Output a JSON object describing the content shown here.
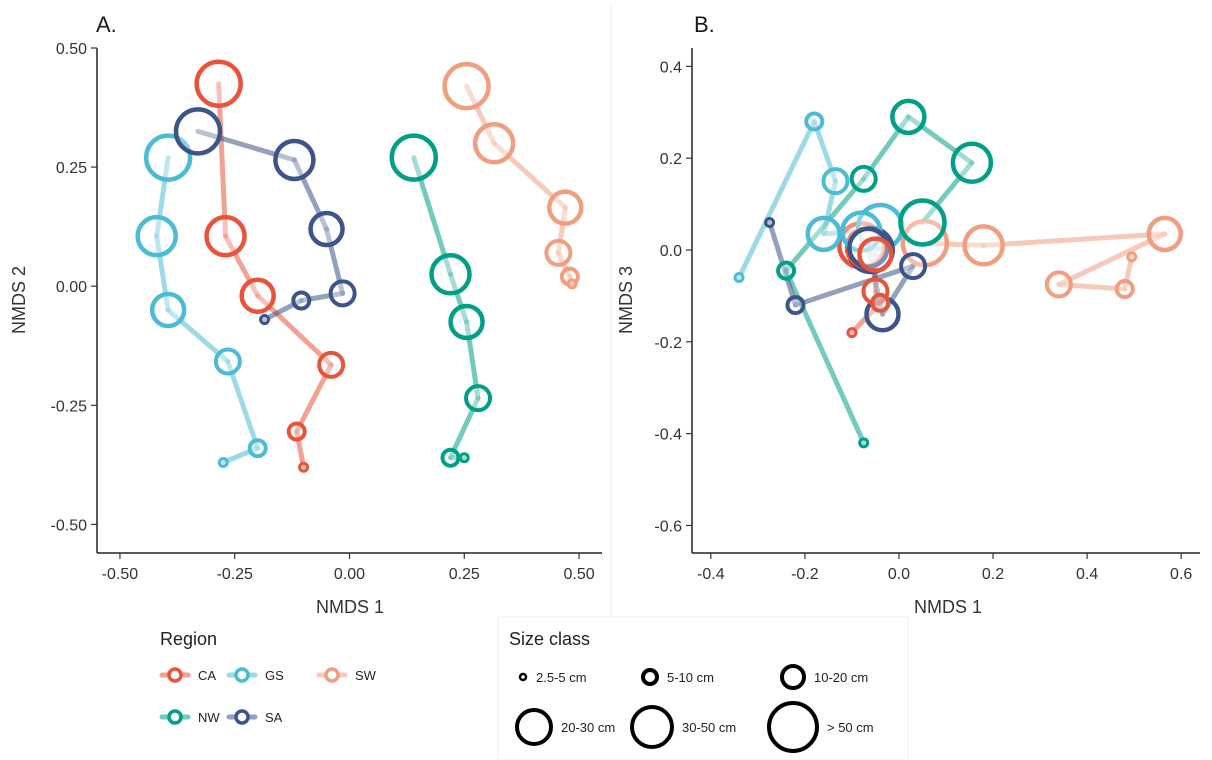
{
  "chart_data": [
    {
      "type": "scatter",
      "panel_label": "A.",
      "xlabel": "NMDS 1",
      "ylabel": "NMDS 2",
      "xlim": [
        -0.55,
        0.55
      ],
      "ylim": [
        -0.56,
        0.5
      ],
      "xticks": [
        -0.5,
        -0.25,
        0.0,
        0.25,
        0.5
      ],
      "xtick_labels": [
        "-0.50",
        "-0.25",
        "0.00",
        "0.25",
        "0.50"
      ],
      "yticks": [
        -0.5,
        -0.25,
        0.0,
        0.25,
        0.5
      ],
      "ytick_labels": [
        "-0.50",
        "-0.25",
        "0.00",
        "0.25",
        "0.50"
      ],
      "grid": false,
      "series": [
        {
          "name": "CA",
          "points": [
            {
              "x": -0.1,
              "y": -0.38,
              "size": "2.5-5 cm"
            },
            {
              "x": -0.115,
              "y": -0.305,
              "size": "5-10 cm"
            },
            {
              "x": -0.04,
              "y": -0.165,
              "size": "10-20 cm"
            },
            {
              "x": -0.2,
              "y": -0.02,
              "size": "20-30 cm"
            },
            {
              "x": -0.27,
              "y": 0.105,
              "size": "30-50 cm"
            },
            {
              "x": -0.285,
              "y": 0.425,
              "size": "> 50 cm"
            }
          ]
        },
        {
          "name": "GS",
          "points": [
            {
              "x": -0.275,
              "y": -0.37,
              "size": "2.5-5 cm"
            },
            {
              "x": -0.2,
              "y": -0.34,
              "size": "5-10 cm"
            },
            {
              "x": -0.265,
              "y": -0.158,
              "size": "10-20 cm"
            },
            {
              "x": -0.395,
              "y": -0.05,
              "size": "20-30 cm"
            },
            {
              "x": -0.42,
              "y": 0.105,
              "size": "30-50 cm"
            },
            {
              "x": -0.395,
              "y": 0.27,
              "size": "> 50 cm"
            }
          ]
        },
        {
          "name": "SW",
          "points": [
            {
              "x": 0.485,
              "y": 0.005,
              "size": "2.5-5 cm"
            },
            {
              "x": 0.48,
              "y": 0.02,
              "size": "5-10 cm"
            },
            {
              "x": 0.455,
              "y": 0.07,
              "size": "10-20 cm"
            },
            {
              "x": 0.47,
              "y": 0.165,
              "size": "20-30 cm"
            },
            {
              "x": 0.315,
              "y": 0.3,
              "size": "30-50 cm"
            },
            {
              "x": 0.255,
              "y": 0.42,
              "size": "> 50 cm"
            }
          ]
        },
        {
          "name": "NW",
          "points": [
            {
              "x": 0.25,
              "y": -0.36,
              "size": "2.5-5 cm"
            },
            {
              "x": 0.22,
              "y": -0.36,
              "size": "5-10 cm"
            },
            {
              "x": 0.28,
              "y": -0.235,
              "size": "10-20 cm"
            },
            {
              "x": 0.255,
              "y": -0.075,
              "size": "20-30 cm"
            },
            {
              "x": 0.22,
              "y": 0.025,
              "size": "30-50 cm"
            },
            {
              "x": 0.14,
              "y": 0.27,
              "size": "> 50 cm"
            }
          ]
        },
        {
          "name": "SA",
          "points": [
            {
              "x": -0.185,
              "y": -0.07,
              "size": "2.5-5 cm"
            },
            {
              "x": -0.105,
              "y": -0.03,
              "size": "5-10 cm"
            },
            {
              "x": -0.015,
              "y": -0.015,
              "size": "10-20 cm"
            },
            {
              "x": -0.05,
              "y": 0.12,
              "size": "20-30 cm"
            },
            {
              "x": -0.12,
              "y": 0.265,
              "size": "30-50 cm"
            },
            {
              "x": -0.33,
              "y": 0.325,
              "size": "> 50 cm"
            }
          ]
        }
      ]
    },
    {
      "type": "scatter",
      "panel_label": "B.",
      "xlabel": "NMDS 1",
      "ylabel": "NMDS 3",
      "xlim": [
        -0.44,
        0.64
      ],
      "ylim": [
        -0.66,
        0.44
      ],
      "xticks": [
        -0.4,
        -0.2,
        0.0,
        0.2,
        0.4,
        0.6
      ],
      "xtick_labels": [
        "-0.4",
        "-0.2",
        "0.0",
        "0.2",
        "0.4",
        "0.6"
      ],
      "yticks": [
        -0.6,
        -0.4,
        -0.2,
        0.0,
        0.2,
        0.4
      ],
      "ytick_labels": [
        "-0.6",
        "-0.4",
        "-0.2",
        "0.0",
        "0.2",
        "0.4"
      ],
      "grid": false,
      "series": [
        {
          "name": "CA",
          "points": [
            {
              "x": -0.1,
              "y": -0.18,
              "size": "2.5-5 cm"
            },
            {
              "x": -0.04,
              "y": -0.115,
              "size": "5-10 cm"
            },
            {
              "x": -0.05,
              "y": -0.09,
              "size": "10-20 cm"
            },
            {
              "x": -0.05,
              "y": -0.01,
              "size": "20-30 cm"
            },
            {
              "x": -0.07,
              "y": 0.005,
              "size": "30-50 cm"
            },
            {
              "x": -0.08,
              "y": 0.01,
              "size": "> 50 cm"
            }
          ]
        },
        {
          "name": "GS",
          "points": [
            {
              "x": -0.34,
              "y": -0.06,
              "size": "2.5-5 cm"
            },
            {
              "x": -0.18,
              "y": 0.28,
              "size": "5-10 cm"
            },
            {
              "x": -0.135,
              "y": 0.15,
              "size": "10-20 cm"
            },
            {
              "x": -0.16,
              "y": 0.035,
              "size": "20-30 cm"
            },
            {
              "x": -0.08,
              "y": 0.04,
              "size": "30-50 cm"
            },
            {
              "x": -0.04,
              "y": 0.05,
              "size": "> 50 cm"
            }
          ]
        },
        {
          "name": "SW",
          "points": [
            {
              "x": 0.495,
              "y": -0.015,
              "size": "2.5-5 cm"
            },
            {
              "x": 0.48,
              "y": -0.085,
              "size": "5-10 cm"
            },
            {
              "x": 0.34,
              "y": -0.075,
              "size": "10-20 cm"
            },
            {
              "x": 0.565,
              "y": 0.035,
              "size": "20-30 cm"
            },
            {
              "x": 0.18,
              "y": 0.01,
              "size": "30-50 cm"
            },
            {
              "x": 0.055,
              "y": 0.015,
              "size": "> 50 cm"
            }
          ]
        },
        {
          "name": "NW",
          "points": [
            {
              "x": -0.075,
              "y": -0.42,
              "size": "2.5-5 cm"
            },
            {
              "x": -0.24,
              "y": -0.045,
              "size": "5-10 cm"
            },
            {
              "x": -0.075,
              "y": 0.155,
              "size": "10-20 cm"
            },
            {
              "x": 0.02,
              "y": 0.29,
              "size": "20-30 cm"
            },
            {
              "x": 0.155,
              "y": 0.19,
              "size": "30-50 cm"
            },
            {
              "x": 0.05,
              "y": 0.06,
              "size": "> 50 cm"
            }
          ]
        },
        {
          "name": "SA",
          "points": [
            {
              "x": -0.275,
              "y": 0.06,
              "size": "2.5-5 cm"
            },
            {
              "x": -0.22,
              "y": -0.12,
              "size": "5-10 cm"
            },
            {
              "x": 0.03,
              "y": -0.035,
              "size": "10-20 cm"
            },
            {
              "x": -0.035,
              "y": -0.14,
              "size": "20-30 cm"
            },
            {
              "x": -0.065,
              "y": 0.005,
              "size": "30-50 cm"
            },
            {
              "x": -0.06,
              "y": 0.0,
              "size": "> 50 cm"
            }
          ]
        }
      ]
    }
  ],
  "colors": {
    "CA": "#e8533a",
    "GS": "#4cbbd5",
    "SW": "#f19d7f",
    "NW": "#00a087",
    "SA": "#3c5488",
    "axis": "#222222",
    "size_legend": "#000000"
  },
  "size_classes": [
    "2.5-5 cm",
    "5-10 cm",
    "10-20 cm",
    "20-30 cm",
    "30-50 cm",
    "> 50 cm"
  ],
  "legend": {
    "region_title": "Region",
    "region_items": [
      "CA",
      "GS",
      "SW",
      "NW",
      "SA"
    ],
    "size_title": "Size class",
    "size_items": [
      "2.5-5 cm",
      "5-10 cm",
      "10-20 cm",
      "20-30 cm",
      "30-50 cm",
      "> 50 cm"
    ]
  }
}
